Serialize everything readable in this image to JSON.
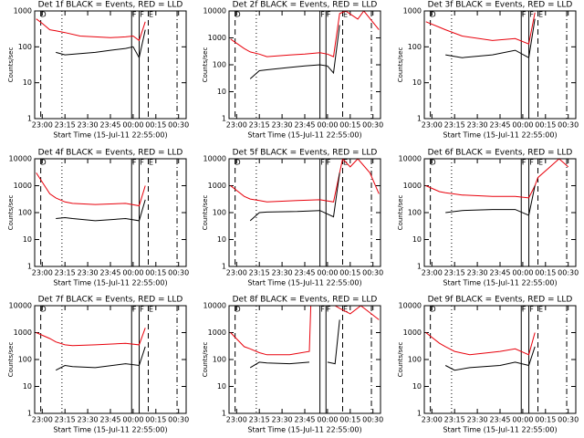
{
  "chart_data": [
    {
      "type": "line",
      "title": "Det 1f BLACK = Events, RED = LLD",
      "xlabel": "Start Time (15-Jul-11 22:55:00)",
      "ylabel": "Counts/sec",
      "log_y": true,
      "xlim": [
        "22:55",
        "00:35"
      ],
      "xticks": [
        "23:00",
        "23:15",
        "23:30",
        "23:45",
        "00:00",
        "00:15",
        "00:30"
      ],
      "ylim": [
        1,
        1000
      ],
      "yticks": [
        1,
        10,
        100,
        1000
      ],
      "markers": [
        {
          "time": "22:59",
          "style": "dashed",
          "label": "D"
        },
        {
          "time": "23:13",
          "style": "dotted"
        },
        {
          "time": "23:59",
          "style": "solid",
          "label": "F"
        },
        {
          "time": "00:04",
          "style": "solid",
          "label": "F"
        },
        {
          "time": "00:10",
          "style": "dashed",
          "label": "E"
        },
        {
          "time": "00:29",
          "style": "dashdot"
        }
      ],
      "x": [
        "22:56",
        "23:00",
        "23:05",
        "23:09",
        "23:15",
        "23:25",
        "23:35",
        "23:45",
        "23:55",
        "00:00",
        "00:04",
        "00:08"
      ],
      "series": [
        {
          "name": "RED",
          "color": "#e8000b",
          "values": [
            600,
            450,
            300,
            280,
            250,
            200,
            190,
            180,
            190,
            200,
            150,
            500
          ]
        },
        {
          "name": "BLACK",
          "color": "#000000",
          "values": [
            null,
            null,
            null,
            70,
            60,
            65,
            70,
            80,
            90,
            100,
            50,
            300
          ]
        }
      ]
    },
    {
      "type": "line",
      "title": "Det 2f BLACK = Events, RED = LLD",
      "xlabel": "Start Time (15-Jul-11 22:55:00)",
      "ylabel": "Counts/sec",
      "log_y": true,
      "xlim": [
        "22:55",
        "00:35"
      ],
      "xticks": [
        "23:00",
        "23:15",
        "23:30",
        "23:45",
        "00:00",
        "00:15",
        "00:30"
      ],
      "ylim": [
        1,
        10000
      ],
      "yticks": [
        1,
        10,
        100,
        1000,
        10000
      ],
      "markers": [
        {
          "time": "22:59",
          "style": "dashed",
          "label": "D"
        },
        {
          "time": "23:13",
          "style": "dotted"
        },
        {
          "time": "23:55",
          "style": "solid",
          "label": "F"
        },
        {
          "time": "23:59",
          "style": "solid",
          "label": "F"
        },
        {
          "time": "00:10",
          "style": "dashed",
          "label": "E"
        },
        {
          "time": "00:29",
          "style": "dashdot"
        }
      ],
      "x": [
        "22:56",
        "23:05",
        "23:09",
        "23:15",
        "23:20",
        "23:35",
        "23:45",
        "23:55",
        "00:00",
        "00:04",
        "00:08",
        "00:12",
        "00:20",
        "00:24",
        "00:34"
      ],
      "series": [
        {
          "name": "RED",
          "color": "#e8000b",
          "values": [
            900,
            400,
            300,
            250,
            200,
            230,
            250,
            280,
            250,
            200,
            8000,
            10000,
            5000,
            10000,
            2000
          ]
        },
        {
          "name": "BLACK",
          "color": "#000000",
          "values": [
            null,
            null,
            30,
            60,
            65,
            80,
            90,
            100,
            90,
            50,
            3000,
            null,
            null,
            null,
            null
          ]
        }
      ]
    },
    {
      "type": "line",
      "title": "Det 3f BLACK = Events, RED = LLD",
      "xlabel": "Start Time (15-Jul-11 22:55:00)",
      "ylabel": "Counts/sec",
      "log_y": true,
      "xlim": [
        "22:55",
        "00:35"
      ],
      "xticks": [
        "23:00",
        "23:15",
        "23:30",
        "23:45",
        "00:00",
        "00:15",
        "00:30"
      ],
      "ylim": [
        1,
        1000
      ],
      "yticks": [
        1,
        10,
        100,
        1000
      ],
      "markers": [
        {
          "time": "22:59",
          "style": "dashed",
          "label": "D"
        },
        {
          "time": "23:13",
          "style": "dotted"
        },
        {
          "time": "23:59",
          "style": "solid",
          "label": "F"
        },
        {
          "time": "00:04",
          "style": "solid",
          "label": "F"
        },
        {
          "time": "00:10",
          "style": "dashed",
          "label": "E"
        },
        {
          "time": "00:29",
          "style": "dashdot"
        }
      ],
      "x": [
        "22:56",
        "23:05",
        "23:09",
        "23:20",
        "23:40",
        "23:55",
        "00:04",
        "00:08"
      ],
      "series": [
        {
          "name": "RED",
          "color": "#e8000b",
          "values": [
            500,
            350,
            300,
            200,
            150,
            170,
            120,
            900
          ]
        },
        {
          "name": "BLACK",
          "color": "#000000",
          "values": [
            null,
            null,
            60,
            50,
            60,
            80,
            50,
            600
          ]
        }
      ]
    },
    {
      "type": "line",
      "title": "Det 4f BLACK = Events, RED = LLD",
      "xlabel": "Start Time (15-Jul-11 22:55:00)",
      "ylabel": "Counts/sec",
      "log_y": true,
      "xlim": [
        "22:55",
        "00:35"
      ],
      "xticks": [
        "23:00",
        "23:15",
        "23:30",
        "23:45",
        "00:00",
        "00:15",
        "00:30"
      ],
      "ylim": [
        1,
        10000
      ],
      "yticks": [
        1,
        10,
        100,
        1000,
        10000
      ],
      "markers": [
        {
          "time": "22:59",
          "style": "dashed",
          "label": "D"
        },
        {
          "time": "23:13",
          "style": "dotted"
        },
        {
          "time": "23:59",
          "style": "solid",
          "label": "F"
        },
        {
          "time": "00:04",
          "style": "solid",
          "label": "F"
        },
        {
          "time": "00:10",
          "style": "dashed",
          "label": "E"
        },
        {
          "time": "00:29",
          "style": "dashdot"
        }
      ],
      "x": [
        "22:56",
        "23:05",
        "23:09",
        "23:15",
        "23:20",
        "23:35",
        "23:55",
        "00:04",
        "00:08"
      ],
      "series": [
        {
          "name": "RED",
          "color": "#e8000b",
          "values": [
            3000,
            500,
            350,
            250,
            220,
            200,
            220,
            180,
            1000
          ]
        },
        {
          "name": "BLACK",
          "color": "#000000",
          "values": [
            null,
            null,
            60,
            65,
            60,
            50,
            60,
            50,
            300
          ]
        }
      ]
    },
    {
      "type": "line",
      "title": "Det 5f BLACK = Events, RED = LLD",
      "xlabel": "Start Time (15-Jul-11 22:55:00)",
      "ylabel": "Counts/sec",
      "log_y": true,
      "xlim": [
        "22:55",
        "00:35"
      ],
      "xticks": [
        "23:00",
        "23:15",
        "23:30",
        "23:45",
        "00:00",
        "00:15",
        "00:30"
      ],
      "ylim": [
        1,
        10000
      ],
      "yticks": [
        1,
        10,
        100,
        1000,
        10000
      ],
      "markers": [
        {
          "time": "22:59",
          "style": "dashed",
          "label": "D"
        },
        {
          "time": "23:13",
          "style": "dotted"
        },
        {
          "time": "23:55",
          "style": "solid",
          "label": "F"
        },
        {
          "time": "23:59",
          "style": "solid",
          "label": "F"
        },
        {
          "time": "00:10",
          "style": "dashed",
          "label": "E"
        },
        {
          "time": "00:29",
          "style": "dashdot"
        }
      ],
      "x": [
        "22:56",
        "23:05",
        "23:09",
        "23:15",
        "23:20",
        "23:40",
        "23:55",
        "00:04",
        "00:08",
        "00:10",
        "00:15",
        "00:20",
        "00:28",
        "00:34"
      ],
      "series": [
        {
          "name": "RED",
          "color": "#e8000b",
          "values": [
            1000,
            400,
            320,
            280,
            250,
            280,
            300,
            250,
            3000,
            10000,
            5000,
            10000,
            3000,
            500
          ]
        },
        {
          "name": "BLACK",
          "color": "#000000",
          "values": [
            null,
            null,
            50,
            100,
            105,
            110,
            120,
            70,
            3000,
            null,
            null,
            null,
            null,
            null
          ]
        }
      ]
    },
    {
      "type": "line",
      "title": "Det 6f BLACK = Events, RED = LLD",
      "xlabel": "Start Time (15-Jul-11 22:55:00)",
      "ylabel": "Counts/sec",
      "log_y": true,
      "xlim": [
        "22:55",
        "00:35"
      ],
      "xticks": [
        "23:00",
        "23:15",
        "23:30",
        "23:45",
        "00:00",
        "00:15",
        "00:30"
      ],
      "ylim": [
        1,
        10000
      ],
      "yticks": [
        1,
        10,
        100,
        1000,
        10000
      ],
      "markers": [
        {
          "time": "22:59",
          "style": "dashed",
          "label": "D"
        },
        {
          "time": "23:13",
          "style": "dotted"
        },
        {
          "time": "23:59",
          "style": "solid",
          "label": "F"
        },
        {
          "time": "00:04",
          "style": "solid",
          "label": "F"
        },
        {
          "time": "00:10",
          "style": "dashed",
          "label": "E"
        },
        {
          "time": "00:29",
          "style": "dashdot"
        }
      ],
      "x": [
        "22:56",
        "23:05",
        "23:09",
        "23:20",
        "23:40",
        "23:55",
        "00:04",
        "00:08",
        "00:10",
        "00:18",
        "00:24",
        "00:30"
      ],
      "series": [
        {
          "name": "RED",
          "color": "#e8000b",
          "values": [
            1000,
            600,
            550,
            450,
            400,
            400,
            350,
            1000,
            2000,
            5000,
            10000,
            5000
          ]
        },
        {
          "name": "BLACK",
          "color": "#000000",
          "values": [
            null,
            null,
            100,
            120,
            130,
            130,
            80,
            1000,
            null,
            null,
            null,
            null
          ]
        }
      ]
    },
    {
      "type": "line",
      "title": "Det 7f BLACK = Events, RED = LLD",
      "xlabel": "Start Time (15-Jul-11 22:55:00)",
      "ylabel": "Counts/sec",
      "log_y": true,
      "xlim": [
        "22:55",
        "00:35"
      ],
      "xticks": [
        "23:00",
        "23:15",
        "23:30",
        "23:45",
        "00:00",
        "00:15",
        "00:30"
      ],
      "ylim": [
        1,
        10000
      ],
      "yticks": [
        1,
        10,
        100,
        1000,
        10000
      ],
      "markers": [
        {
          "time": "22:59",
          "style": "dashed",
          "label": "D"
        },
        {
          "time": "23:13",
          "style": "dotted"
        },
        {
          "time": "23:59",
          "style": "solid",
          "label": "F"
        },
        {
          "time": "00:04",
          "style": "solid",
          "label": "F"
        },
        {
          "time": "00:10",
          "style": "dashed",
          "label": "E"
        },
        {
          "time": "00:29",
          "style": "dashdot"
        }
      ],
      "x": [
        "22:56",
        "23:05",
        "23:09",
        "23:15",
        "23:20",
        "23:35",
        "23:55",
        "00:04",
        "00:08"
      ],
      "series": [
        {
          "name": "RED",
          "color": "#e8000b",
          "values": [
            1000,
            600,
            450,
            350,
            330,
            350,
            400,
            350,
            1500
          ]
        },
        {
          "name": "BLACK",
          "color": "#000000",
          "values": [
            null,
            null,
            40,
            60,
            55,
            50,
            70,
            60,
            300
          ]
        }
      ]
    },
    {
      "type": "line",
      "title": "Det 8f BLACK = Events, RED = LLD",
      "xlabel": "Start Time (15-Jul-11 22:55:00)",
      "ylabel": "Counts/sec",
      "log_y": true,
      "xlim": [
        "22:55",
        "00:35"
      ],
      "xticks": [
        "23:00",
        "23:15",
        "23:30",
        "23:45",
        "00:00",
        "00:15",
        "00:30"
      ],
      "ylim": [
        1,
        10000
      ],
      "yticks": [
        1,
        10,
        100,
        1000,
        10000
      ],
      "markers": [
        {
          "time": "22:59",
          "style": "dashed",
          "label": "D"
        },
        {
          "time": "23:13",
          "style": "dotted"
        },
        {
          "time": "23:55",
          "style": "solid",
          "label": "F"
        },
        {
          "time": "23:59",
          "style": "solid",
          "label": "F"
        },
        {
          "time": "00:10",
          "style": "dashed",
          "label": "E"
        },
        {
          "time": "00:29",
          "style": "dashdot"
        }
      ],
      "x": [
        "22:56",
        "23:05",
        "23:09",
        "23:15",
        "23:20",
        "23:35",
        "23:48",
        "23:49",
        "00:00",
        "00:05",
        "00:08",
        "00:15",
        "00:22",
        "00:34"
      ],
      "series": [
        {
          "name": "RED",
          "color": "#e8000b",
          "values": [
            1000,
            300,
            250,
            180,
            150,
            150,
            200,
            10000,
            null,
            10000,
            8000,
            5000,
            10000,
            3000
          ]
        },
        {
          "name": "BLACK",
          "color": "#000000",
          "values": [
            null,
            null,
            50,
            80,
            75,
            70,
            80,
            null,
            80,
            70,
            3000,
            null,
            null,
            null
          ]
        }
      ]
    },
    {
      "type": "line",
      "title": "Det 9f BLACK = Events, RED = LLD",
      "xlabel": "Start Time (15-Jul-11 22:55:00)",
      "ylabel": "Counts/sec",
      "log_y": true,
      "xlim": [
        "22:55",
        "00:35"
      ],
      "xticks": [
        "23:00",
        "23:15",
        "23:30",
        "23:45",
        "00:00",
        "00:15",
        "00:30"
      ],
      "ylim": [
        1,
        10000
      ],
      "yticks": [
        1,
        10,
        100,
        1000,
        10000
      ],
      "markers": [
        {
          "time": "22:59",
          "style": "dashed",
          "label": "D"
        },
        {
          "time": "23:13",
          "style": "dotted"
        },
        {
          "time": "23:59",
          "style": "solid",
          "label": "F"
        },
        {
          "time": "00:04",
          "style": "solid",
          "label": "F"
        },
        {
          "time": "00:10",
          "style": "dashed",
          "label": "E"
        },
        {
          "time": "00:29",
          "style": "dashdot"
        }
      ],
      "x": [
        "22:56",
        "23:05",
        "23:09",
        "23:15",
        "23:25",
        "23:45",
        "23:55",
        "00:04",
        "00:08"
      ],
      "series": [
        {
          "name": "RED",
          "color": "#e8000b",
          "values": [
            1000,
            400,
            300,
            200,
            150,
            200,
            250,
            150,
            1000
          ]
        },
        {
          "name": "BLACK",
          "color": "#000000",
          "values": [
            null,
            null,
            60,
            40,
            50,
            60,
            80,
            60,
            300
          ]
        }
      ]
    }
  ]
}
